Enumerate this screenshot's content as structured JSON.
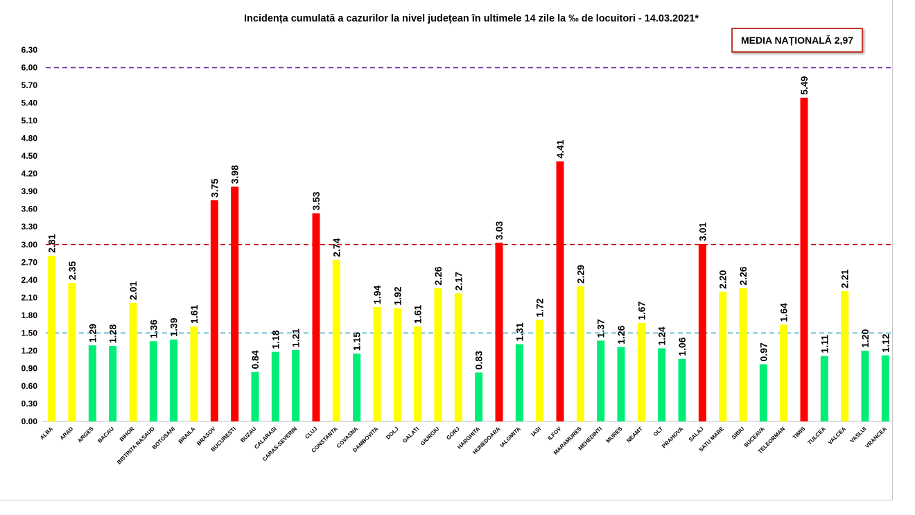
{
  "chart_data": {
    "type": "bar",
    "title": "Incidența cumulată a cazurilor la nivel județean în ultimele 14 zile la ‰ de locuitori - 14.03.2021*",
    "annotation": "MEDIA NAȚIONALĂ  2,97",
    "ylim": [
      0,
      6.3
    ],
    "yticks": [
      "0.00",
      "0.30",
      "0.60",
      "0.90",
      "1.20",
      "1.50",
      "1.80",
      "2.10",
      "2.40",
      "2.70",
      "3.00",
      "3.30",
      "3.60",
      "3.90",
      "4.20",
      "4.50",
      "4.80",
      "5.10",
      "5.40",
      "5.70",
      "6.00",
      "6.30"
    ],
    "grid": false,
    "reference_lines": [
      {
        "y": 6.0,
        "color": "#7030a0"
      },
      {
        "y": 3.0,
        "color": "#c00000"
      },
      {
        "y": 1.5,
        "color": "#31a5c4"
      }
    ],
    "colors": {
      "green": "#00ee76",
      "yellow": "#ffff00",
      "red": "#ff0000"
    },
    "categories": [
      "ALBA",
      "ARAD",
      "ARGES",
      "BACAU",
      "BIHOR",
      "BISTRITA NASAUD",
      "BOTOSANI",
      "BRAILA",
      "BRASOV",
      "BUCURESTI",
      "BUZAU",
      "CALARASI",
      "CARAS-SEVERIN",
      "CLUJ",
      "CONSTANTA",
      "COVASNA",
      "DAMBOVITA",
      "DOLJ",
      "GALATI",
      "GIURGIU",
      "GORJ",
      "HARGHITA",
      "HUNEDOARA",
      "IALOMITA",
      "IASI",
      "ILFOV",
      "MARAMURES",
      "MEHEDINTI",
      "MURES",
      "NEAMT",
      "OLT",
      "PRAHOVA",
      "SALAJ",
      "SATU MARE",
      "SIBIU",
      "SUCEAVA",
      "TELEORMAN",
      "TIMIS",
      "TULCEA",
      "VALCEA",
      "VASLUI",
      "VRANCEA"
    ],
    "values": [
      2.81,
      2.35,
      1.29,
      1.28,
      2.01,
      1.36,
      1.39,
      1.61,
      3.75,
      3.98,
      0.84,
      1.18,
      1.21,
      3.53,
      2.74,
      1.15,
      1.94,
      1.92,
      1.61,
      2.26,
      2.17,
      0.83,
      3.03,
      1.31,
      1.72,
      4.41,
      2.29,
      1.37,
      1.26,
      1.67,
      1.24,
      1.06,
      3.01,
      2.2,
      2.26,
      0.97,
      1.64,
      5.49,
      1.11,
      2.21,
      1.2,
      1.12
    ],
    "value_labels": [
      "2.81",
      "2.35",
      "1.29",
      "1.28",
      "2.01",
      "1.36",
      "1.39",
      "1.61",
      "3.75",
      "3.98",
      "0.84",
      "1.18",
      "1.21",
      "3.53",
      "2.74",
      "1.15",
      "1.94",
      "1.92",
      "1.61",
      "2.26",
      "2.17",
      "0.83",
      "3.03",
      "1.31",
      "1.72",
      "4.41",
      "2.29",
      "1.37",
      "1.26",
      "1.67",
      "1.24",
      "1.06",
      "3.01",
      "2.20",
      "2.26",
      "0.97",
      "1.64",
      "5.49",
      "1.11",
      "2.21",
      "1.20",
      "1.12"
    ],
    "bar_colors": [
      "yellow",
      "yellow",
      "green",
      "green",
      "yellow",
      "green",
      "green",
      "yellow",
      "red",
      "red",
      "green",
      "green",
      "green",
      "red",
      "yellow",
      "green",
      "yellow",
      "yellow",
      "yellow",
      "yellow",
      "yellow",
      "green",
      "red",
      "green",
      "yellow",
      "red",
      "yellow",
      "green",
      "green",
      "yellow",
      "green",
      "green",
      "red",
      "yellow",
      "yellow",
      "green",
      "yellow",
      "red",
      "green",
      "yellow",
      "green",
      "green"
    ]
  }
}
